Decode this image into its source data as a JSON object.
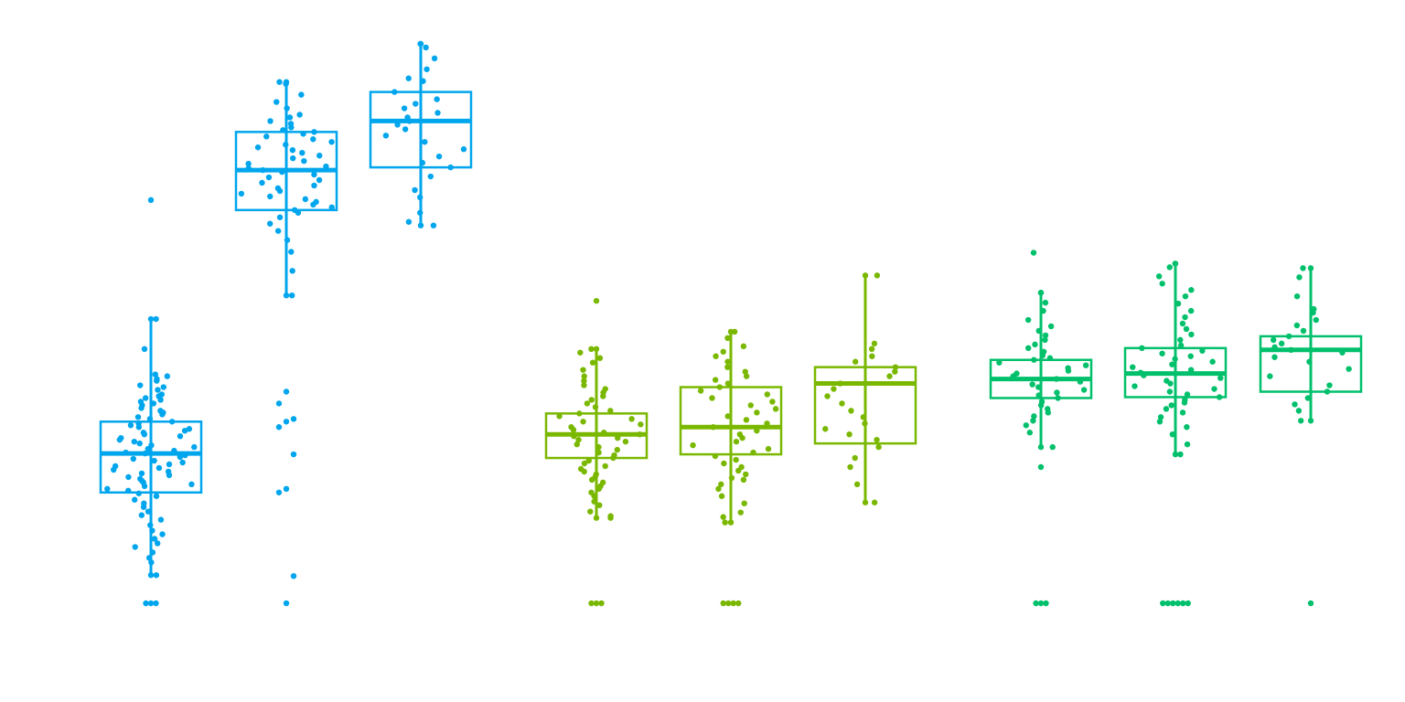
{
  "chart_data": {
    "type": "box",
    "title": "",
    "xlabel": "",
    "ylabel": "",
    "ylim": [
      0,
      620
    ],
    "grid": false,
    "legend": "none",
    "groups": [
      {
        "color": "#00a6ed",
        "boxes": [
          {
            "min": 31,
            "q1": 122,
            "median": 165,
            "q3": 200,
            "max": 313,
            "points": [
              313,
              280,
              252,
              250,
              247,
              245,
              240,
              238,
              235,
              230,
              228,
              226,
              224,
              222,
              220,
              218,
              215,
              212,
              210,
              208,
              205,
              203,
              200,
              198,
              196,
              194,
              192,
              190,
              188,
              186,
              184,
              182,
              180,
              178,
              176,
              174,
              172,
              170,
              168,
              166,
              165,
              163,
              161,
              159,
              157,
              155,
              153,
              151,
              149,
              147,
              145,
              143,
              141,
              139,
              137,
              135,
              133,
              131,
              129,
              126,
              124,
              121,
              118,
              114,
              110,
              106,
              101,
              97,
              92,
              86,
              80,
              76,
              71,
              66,
              62,
              56,
              50,
              45,
              31
            ],
            "outliers": [
              444
            ],
            "zeros": 3
          },
          {
            "min": 339,
            "q1": 433,
            "median": 477,
            "q3": 519,
            "max": 574,
            "points": [
              574,
              572,
              560,
              552,
              545,
              538,
              535,
              531,
              528,
              524,
              521,
              519,
              517,
              514,
              511,
              508,
              505,
              502,
              499,
              496,
              493,
              490,
              487,
              484,
              481,
              479,
              477,
              475,
              472,
              469,
              466,
              463,
              460,
              457,
              454,
              451,
              448,
              445,
              442,
              439,
              436,
              433,
              430,
              425,
              418,
              410,
              400,
              387,
              366,
              339
            ],
            "outliers": [
              233,
              220,
              203,
              200,
              194,
              164,
              126,
              122,
              30
            ],
            "zeros": 1
          },
          {
            "min": 416,
            "q1": 480,
            "median": 531,
            "q3": 563,
            "max": 616,
            "points": [
              616,
              612,
              600,
              588,
              578,
              575,
              563,
              555,
              550,
              545,
              540,
              535,
              531,
              527,
              522,
              515,
              508,
              500,
              492,
              485,
              480,
              470,
              455,
              447,
              430,
              420,
              416
            ]
          }
        ]
      },
      {
        "color": "#7ab800",
        "boxes": [
          {
            "min": 94,
            "q1": 160,
            "median": 186,
            "q3": 209,
            "max": 280,
            "points": [
              280,
              276,
              270,
              265,
              257,
              250,
              245,
              240,
              236,
              232,
              228,
              224,
              220,
              216,
              212,
              209,
              206,
              203,
              200,
              197,
              194,
              191,
              188,
              186,
              184,
              182,
              180,
              178,
              175,
              172,
              169,
              166,
              163,
              160,
              157,
              154,
              151,
              148,
              145,
              142,
              139,
              136,
              133,
              129,
              126,
              122,
              118,
              112,
              108,
              101,
              96,
              94
            ],
            "outliers": [
              333
            ],
            "zeros": 3
          },
          {
            "min": 89,
            "q1": 164,
            "median": 194,
            "q3": 238,
            "max": 299,
            "points": [
              299,
              292,
              283,
              277,
              272,
              266,
              260,
              255,
              250,
              246,
              242,
              238,
              234,
              230,
              226,
              222,
              218,
              214,
              210,
              206,
              202,
              198,
              194,
              190,
              186,
              182,
              178,
              174,
              170,
              166,
              162,
              158,
              154,
              150,
              146,
              142,
              138,
              136,
              131,
              126,
              118,
              110,
              100,
              95,
              89
            ],
            "zeros": 4
          },
          {
            "min": 111,
            "q1": 176,
            "median": 242,
            "q3": 260,
            "max": 361,
            "points": [
              361,
              286,
              280,
              272,
              266,
              260,
              255,
              250,
              242,
              236,
              228,
              220,
              212,
              205,
              198,
              192,
              186,
              180,
              172,
              160,
              150,
              131,
              111
            ]
          }
        ]
      },
      {
        "color": "#00c06b",
        "boxes": [
          {
            "min": 172,
            "q1": 226,
            "median": 247,
            "q3": 268,
            "max": 342,
            "points": [
              342,
              331,
              322,
              312,
              305,
              300,
              295,
              290,
              285,
              281,
              277,
              273,
              270,
              268,
              265,
              262,
              259,
              256,
              253,
              250,
              247,
              244,
              241,
              238,
              235,
              232,
              229,
              226,
              222,
              218,
              214,
              210,
              206,
              201,
              196,
              188,
              172
            ],
            "outliers": [
              150,
              386
            ],
            "zeros": 3
          },
          {
            "min": 164,
            "q1": 227,
            "median": 253,
            "q3": 281,
            "max": 374,
            "points": [
              374,
              370,
              360,
              352,
              345,
              338,
              330,
              322,
              315,
              308,
              302,
              296,
              290,
              284,
              281,
              278,
              275,
              272,
              269,
              266,
              263,
              260,
              257,
              254,
              251,
              248,
              245,
              242,
              239,
              236,
              233,
              230,
              227,
              224,
              221,
              218,
              214,
              210,
              205,
              200,
              194,
              186,
              175,
              164
            ],
            "zeros": 6
          },
          {
            "min": 201,
            "q1": 233,
            "median": 279,
            "q3": 294,
            "max": 369,
            "points": [
              369,
              359,
              338,
              324,
              320,
              312,
              306,
              300,
              294,
              290,
              286,
              282,
              279,
              276,
              271,
              266,
              258,
              250,
              240,
              233,
              226,
              219,
              212,
              201
            ],
            "zeros": 1
          }
        ]
      }
    ]
  }
}
